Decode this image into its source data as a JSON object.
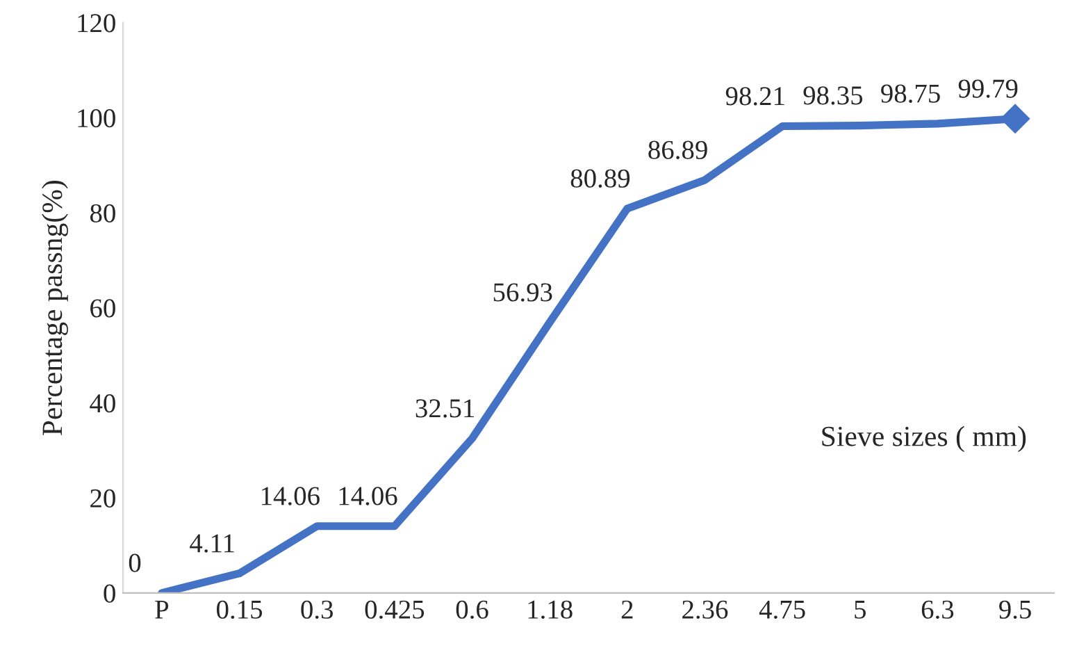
{
  "chart_data": {
    "type": "line",
    "ylabel": "Percentage passng(%)",
    "xlabel": "Sieve sizes ( mm)",
    "categories": [
      "P",
      "0.15",
      "0.3",
      "0.425",
      "0.6",
      "1.18",
      "2",
      "2.36",
      "4.75",
      "5",
      "6.3",
      "9.5"
    ],
    "series": [
      {
        "color": "#4472c4",
        "values": [
          0,
          4.11,
          14.06,
          14.06,
          32.51,
          56.93,
          80.89,
          86.89,
          98.21,
          98.35,
          98.75,
          99.79
        ],
        "marker": "none",
        "data_labels": true
      }
    ],
    "ylim": [
      0,
      120
    ],
    "yticks": [
      0,
      20,
      40,
      60,
      80,
      100,
      120
    ],
    "grid": false,
    "legend": false
  }
}
